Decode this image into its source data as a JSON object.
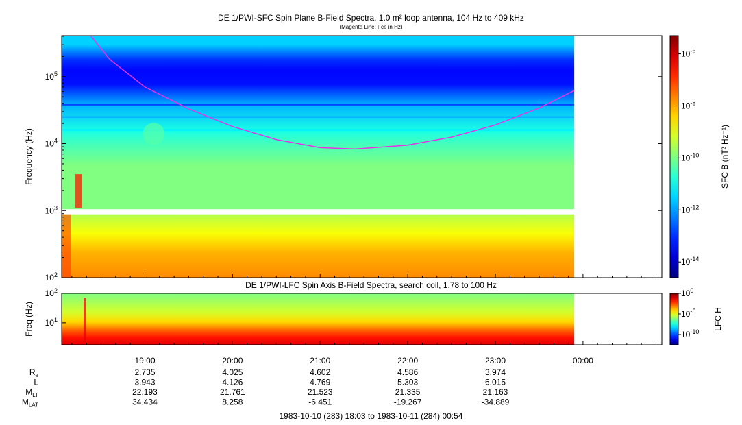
{
  "chart_data": [
    {
      "type": "heatmap",
      "title": "DE 1/PWI-SFC  Spin Plane B-Field Spectra, 1.0 m² loop antenna, 104 Hz to 409 kHz",
      "subtitle": "(Magenta Line: Fce in Hz)",
      "ylabel": "Frequency (Hz)",
      "yscale": "log",
      "ylim": [
        100,
        409000
      ],
      "yticks": [
        {
          "label": "10",
          "exp": "2"
        },
        {
          "label": "10",
          "exp": "3"
        },
        {
          "label": "10",
          "exp": "4"
        },
        {
          "label": "10",
          "exp": "5"
        }
      ],
      "colorbar": {
        "label": "SFC B (nT² Hz⁻¹)",
        "ticks": [
          {
            "label": "10",
            "exp": "-6"
          },
          {
            "label": "10",
            "exp": "-8"
          },
          {
            "label": "10",
            "exp": "-10"
          },
          {
            "label": "10",
            "exp": "-12"
          },
          {
            "label": "10",
            "exp": "-14"
          }
        ],
        "range_exp": [
          -14.6,
          -5.3
        ]
      },
      "line_series": {
        "color": "#e633e6",
        "x_hours": [
          18.38,
          18.6,
          19.0,
          19.5,
          20.0,
          20.5,
          21.0,
          21.4,
          22.0,
          22.5,
          23.0,
          23.5,
          23.9
        ],
        "fce_hz": [
          420000,
          180000,
          70000,
          33000,
          18000,
          11500,
          8700,
          8300,
          9500,
          12500,
          19000,
          34000,
          62000
        ]
      }
    },
    {
      "type": "heatmap",
      "title": "DE 1/PWI-LFC  Spin Axis B-Field Spectra, search coil, 1.78 to 100 Hz",
      "ylabel": "Freq (Hz)",
      "yscale": "log",
      "ylim": [
        1.78,
        100
      ],
      "yticks": [
        {
          "label": "10",
          "exp": "1"
        },
        {
          "label": "10",
          "exp": "2"
        }
      ],
      "colorbar": {
        "label": "LFC H",
        "ticks": [
          {
            "label": "10",
            "exp": "0"
          },
          {
            "label": "10",
            "exp": "-5"
          },
          {
            "label": "10",
            "exp": "-10"
          }
        ],
        "range_exp": [
          -12.5,
          0
        ]
      }
    }
  ],
  "time_axis": {
    "start_hour": 18.05,
    "end_hour": 24.9,
    "data_end_hour": 23.9,
    "major_ticks": [
      {
        "hour": 19,
        "label": "19:00"
      },
      {
        "hour": 20,
        "label": "20:00"
      },
      {
        "hour": 21,
        "label": "21:00"
      },
      {
        "hour": 22,
        "label": "22:00"
      },
      {
        "hour": 23,
        "label": "23:00"
      },
      {
        "hour": 24,
        "label": "00:00"
      }
    ]
  },
  "ephemeris": {
    "rows": [
      {
        "name": "R",
        "sub": "e",
        "values": [
          "2.735",
          "4.025",
          "4.602",
          "4.586",
          "3.974"
        ]
      },
      {
        "name": "L",
        "sub": "",
        "values": [
          "3.943",
          "4.126",
          "4.769",
          "5.303",
          "6.015"
        ]
      },
      {
        "name": "M",
        "sub": "LT",
        "values": [
          "22.193",
          "21.761",
          "21.523",
          "21.335",
          "21.163"
        ]
      },
      {
        "name": "M",
        "sub": "LAT",
        "values": [
          "34.434",
          "8.258",
          "-6.451",
          "-19.267",
          "-34.889"
        ]
      }
    ]
  },
  "footer": "1983-10-10 (283) 18:03 to 1983-10-11 (284) 00:54"
}
